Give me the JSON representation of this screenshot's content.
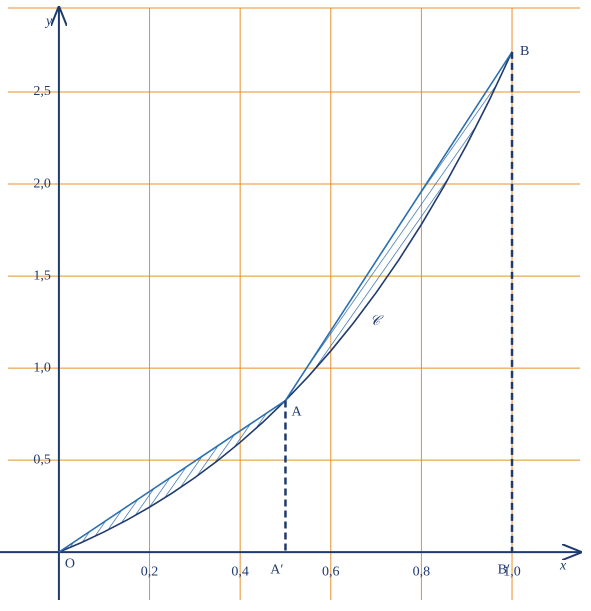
{
  "chart_data": {
    "type": "function-plot",
    "x_label": "x",
    "y_label": "y",
    "xlim": [
      -0.13,
      1.15
    ],
    "ylim": [
      -0.26,
      3.0
    ],
    "xticks": [
      {
        "value": 0.2,
        "label": "0,2"
      },
      {
        "value": 0.4,
        "label": "0,4"
      },
      {
        "value": 0.6,
        "label": "0,6"
      },
      {
        "value": 0.8,
        "label": "0,8"
      },
      {
        "value": 1.0,
        "label": "1,0"
      }
    ],
    "yticks": [
      {
        "value": 0.5,
        "label": "0,5"
      },
      {
        "value": 1.0,
        "label": "1,0"
      },
      {
        "value": 1.5,
        "label": "1,5"
      },
      {
        "value": 2.0,
        "label": "2,0"
      },
      {
        "value": 2.5,
        "label": "2,5"
      }
    ],
    "grid": true,
    "grid_color": "#e8902a",
    "curve": {
      "name": "𝒞",
      "color": "#1f3a6e",
      "x": [
        0,
        0.05,
        0.1,
        0.15,
        0.2,
        0.25,
        0.3,
        0.35,
        0.4,
        0.45,
        0.5,
        0.55,
        0.6,
        0.65,
        0.7,
        0.75,
        0.8,
        0.85,
        0.9,
        0.95,
        1.0
      ],
      "values": [
        0,
        0.0526,
        0.1105,
        0.1743,
        0.2443,
        0.321,
        0.405,
        0.4967,
        0.5967,
        0.7057,
        0.8244,
        0.9533,
        1.0933,
        1.2451,
        1.4096,
        1.5878,
        1.7804,
        1.9887,
        2.2136,
        2.4564,
        2.7183
      ]
    },
    "chord_color": "#2a6fb0",
    "points": [
      {
        "label": "O",
        "x": 0,
        "y": 0
      },
      {
        "label": "A",
        "x": 0.5,
        "y": 0.824
      },
      {
        "label": "B",
        "x": 1.0,
        "y": 2.718
      }
    ],
    "projections": [
      {
        "label": "A′",
        "x": 0.5
      },
      {
        "label": "B′",
        "x": 1.0
      }
    ]
  }
}
